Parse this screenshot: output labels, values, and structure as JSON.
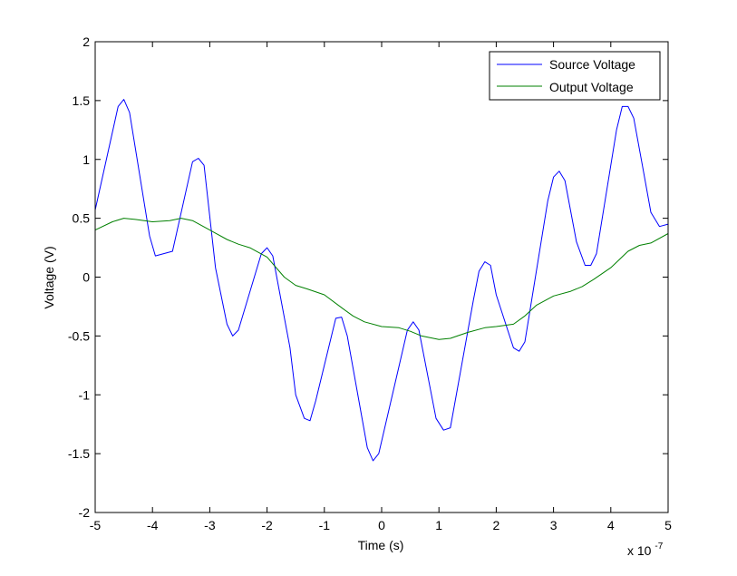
{
  "chart_data": {
    "type": "line",
    "title": "",
    "xlabel": "Time (s)",
    "ylabel": "Voltage (V)",
    "x_exponent_base": "x 10",
    "x_exponent_power": "-7",
    "xlim": [
      -5,
      5
    ],
    "ylim": [
      -2,
      2
    ],
    "xticks": [
      -5,
      -4,
      -3,
      -2,
      -1,
      0,
      1,
      2,
      3,
      4,
      5
    ],
    "yticks": [
      -2,
      -1.5,
      -1,
      -0.5,
      0,
      0.5,
      1,
      1.5,
      2
    ],
    "xtick_labels": [
      "-5",
      "-4",
      "-3",
      "-2",
      "-1",
      "0",
      "1",
      "2",
      "3",
      "4",
      "5"
    ],
    "ytick_labels": [
      "-2",
      "-1.5",
      "-1",
      "-0.5",
      "0",
      "0.5",
      "1",
      "1.5",
      "2"
    ],
    "grid": false,
    "legend_position": "top-right",
    "series": [
      {
        "name": "Source Voltage",
        "color": "#0000ff",
        "x": [
          -5.0,
          -4.6,
          -4.5,
          -4.4,
          -4.05,
          -3.95,
          -3.65,
          -3.3,
          -3.2,
          -3.1,
          -2.9,
          -2.7,
          -2.6,
          -2.5,
          -2.1,
          -2.0,
          -1.9,
          -1.6,
          -1.5,
          -1.35,
          -1.25,
          -1.15,
          -0.8,
          -0.7,
          -0.6,
          -0.25,
          -0.15,
          -0.05,
          0.45,
          0.55,
          0.65,
          0.95,
          1.08,
          1.2,
          1.6,
          1.7,
          1.8,
          1.9,
          2.0,
          2.3,
          2.4,
          2.5,
          2.9,
          3.0,
          3.1,
          3.2,
          3.4,
          3.55,
          3.65,
          3.75,
          4.1,
          4.2,
          4.3,
          4.4,
          4.55,
          4.7,
          4.85,
          5.0
        ],
        "y": [
          0.57,
          1.45,
          1.51,
          1.4,
          0.35,
          0.18,
          0.22,
          0.98,
          1.01,
          0.95,
          0.08,
          -0.4,
          -0.5,
          -0.45,
          0.2,
          0.25,
          0.18,
          -0.6,
          -1.0,
          -1.2,
          -1.22,
          -1.05,
          -0.35,
          -0.34,
          -0.5,
          -1.45,
          -1.56,
          -1.5,
          -0.45,
          -0.38,
          -0.45,
          -1.2,
          -1.3,
          -1.28,
          -0.2,
          0.05,
          0.13,
          0.1,
          -0.15,
          -0.6,
          -0.63,
          -0.55,
          0.65,
          0.85,
          0.9,
          0.82,
          0.3,
          0.1,
          0.1,
          0.2,
          1.25,
          1.45,
          1.45,
          1.35,
          0.95,
          0.55,
          0.43,
          0.45
        ]
      },
      {
        "name": "Output Voltage",
        "color": "#008000",
        "x": [
          -5.0,
          -4.7,
          -4.5,
          -4.3,
          -4.0,
          -3.7,
          -3.5,
          -3.3,
          -3.0,
          -2.7,
          -2.5,
          -2.3,
          -2.0,
          -1.7,
          -1.5,
          -1.3,
          -1.0,
          -0.7,
          -0.5,
          -0.3,
          0.0,
          0.3,
          0.5,
          0.7,
          1.0,
          1.2,
          1.5,
          1.8,
          2.0,
          2.3,
          2.5,
          2.7,
          3.0,
          3.3,
          3.5,
          3.7,
          4.0,
          4.3,
          4.5,
          4.7,
          5.0
        ],
        "y": [
          0.4,
          0.47,
          0.5,
          0.49,
          0.47,
          0.48,
          0.5,
          0.48,
          0.4,
          0.32,
          0.28,
          0.25,
          0.17,
          0.0,
          -0.07,
          -0.1,
          -0.15,
          -0.26,
          -0.33,
          -0.38,
          -0.42,
          -0.43,
          -0.46,
          -0.5,
          -0.53,
          -0.52,
          -0.47,
          -0.43,
          -0.42,
          -0.4,
          -0.33,
          -0.24,
          -0.16,
          -0.12,
          -0.08,
          -0.02,
          0.08,
          0.22,
          0.27,
          0.29,
          0.37
        ]
      }
    ]
  }
}
